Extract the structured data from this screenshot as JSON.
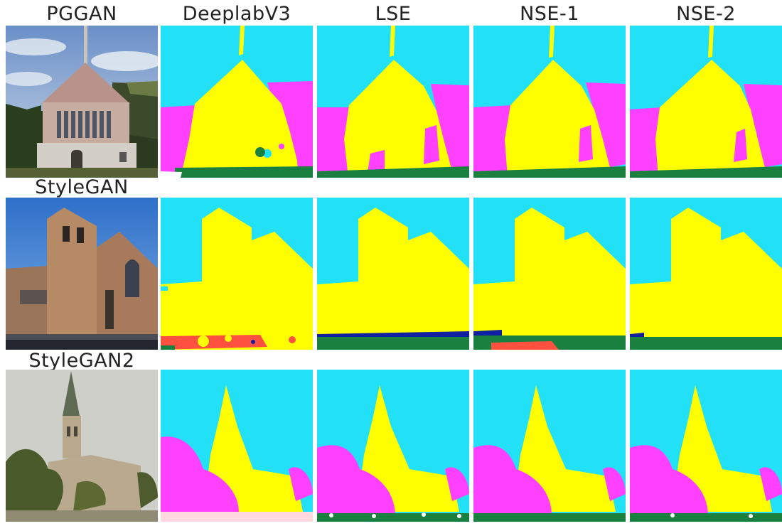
{
  "figure": {
    "column_headers": [
      "PGGAN",
      "DeeplabV3",
      "LSE",
      "NSE-1",
      "NSE-2"
    ],
    "row_labels": [
      "PGGAN",
      "StyleGAN",
      "StyleGAN2"
    ],
    "segmentation_colors": {
      "sky": "#22e0f5",
      "building": "#ffff00",
      "tree": "#ff40ff",
      "grass": "#1a8040",
      "road": "#ff5040",
      "water": "#1020a0",
      "ground": "#ffd8e0"
    }
  }
}
